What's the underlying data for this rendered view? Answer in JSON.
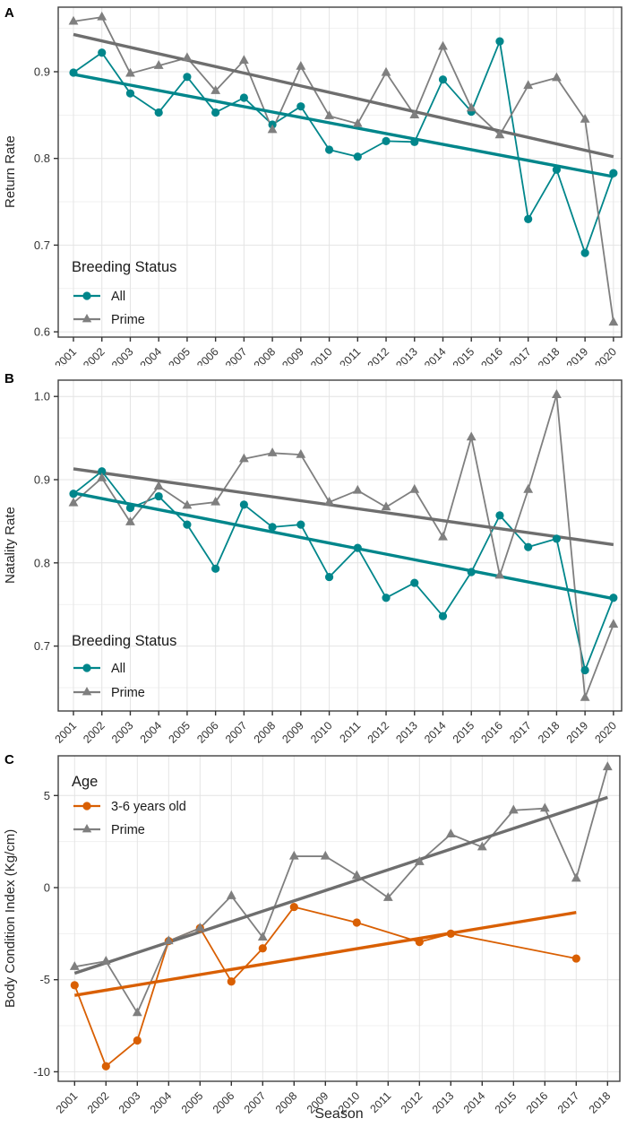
{
  "figure": {
    "x_axis_title": "Season",
    "background": "#ffffff"
  },
  "colors": {
    "teal": "#00868B",
    "gray": "#7F7F7F",
    "gray_trend": "#6E6E6E",
    "orange": "#D95F02",
    "text": "#262626"
  },
  "chart_data": [
    {
      "panel_label": "A",
      "type": "line",
      "title": "",
      "ylabel": "Return Rate",
      "xlabel": "Season",
      "legend_title": "Breeding Status",
      "legend_position": "inside bottom-left",
      "grid": true,
      "x": [
        2001,
        2002,
        2003,
        2004,
        2005,
        2006,
        2007,
        2008,
        2009,
        2010,
        2011,
        2012,
        2013,
        2014,
        2015,
        2016,
        2017,
        2018,
        2019,
        2020
      ],
      "x_tick_labels": [
        "2001",
        "2002",
        "2003",
        "2004",
        "2005",
        "2006",
        "2007",
        "2008",
        "2009",
        "2010",
        "2011",
        "2012",
        "2013",
        "2014",
        "2015",
        "2016",
        "2017",
        "2018",
        "2019",
        "2020"
      ],
      "yticks": [
        0.6,
        0.7,
        0.8,
        0.9
      ],
      "ytick_labels": [
        "0.6",
        "0.7",
        "0.8",
        "0.9"
      ],
      "ylim": [
        0.595,
        0.976
      ],
      "series": [
        {
          "name": "All",
          "marker": "circle",
          "color": "#00868B",
          "values": [
            0.899,
            0.922,
            0.875,
            0.853,
            0.894,
            0.853,
            0.87,
            0.839,
            0.86,
            0.81,
            0.802,
            0.82,
            0.819,
            0.891,
            0.854,
            0.935,
            0.73,
            0.787,
            0.691,
            0.783
          ]
        },
        {
          "name": "Prime",
          "marker": "triangle",
          "color": "#7F7F7F",
          "values": [
            0.958,
            0.963,
            0.898,
            0.907,
            0.916,
            0.878,
            0.913,
            0.833,
            0.906,
            0.849,
            0.84,
            0.899,
            0.85,
            0.929,
            0.858,
            0.827,
            0.884,
            0.893,
            0.845,
            0.611
          ]
        }
      ],
      "trends": [
        {
          "series": "All",
          "color": "#00868B",
          "x1": 2001,
          "y1": 0.897,
          "x2": 2020,
          "y2": 0.779
        },
        {
          "series": "Prime",
          "color": "#6E6E6E",
          "x1": 2001,
          "y1": 0.943,
          "x2": 2020,
          "y2": 0.802
        }
      ]
    },
    {
      "panel_label": "B",
      "type": "line",
      "title": "",
      "ylabel": "Natality Rate",
      "xlabel": "Season",
      "legend_title": "Breeding Status",
      "legend_position": "inside bottom-left",
      "grid": true,
      "x": [
        2001,
        2002,
        2003,
        2004,
        2005,
        2006,
        2007,
        2008,
        2009,
        2010,
        2011,
        2012,
        2013,
        2014,
        2015,
        2016,
        2017,
        2018,
        2019,
        2020
      ],
      "x_tick_labels": [
        "2001",
        "2002",
        "2003",
        "2004",
        "2005",
        "2006",
        "2007",
        "2008",
        "2009",
        "2010",
        "2011",
        "2012",
        "2013",
        "2014",
        "2015",
        "2016",
        "2017",
        "2018",
        "2019",
        "2020"
      ],
      "yticks": [
        0.7,
        0.8,
        0.9,
        1.0
      ],
      "ytick_labels": [
        "0.7",
        "0.8",
        "0.9",
        "1.0"
      ],
      "ylim": [
        0.618,
        1.02
      ],
      "series": [
        {
          "name": "All",
          "marker": "circle",
          "color": "#00868B",
          "values": [
            0.883,
            0.91,
            0.866,
            0.88,
            0.846,
            0.793,
            0.87,
            0.843,
            0.846,
            0.783,
            0.818,
            0.758,
            0.776,
            0.736,
            0.789,
            0.857,
            0.819,
            0.829,
            0.671,
            0.758
          ]
        },
        {
          "name": "Prime",
          "marker": "triangle",
          "color": "#7F7F7F",
          "values": [
            0.872,
            0.902,
            0.849,
            0.892,
            0.869,
            0.873,
            0.925,
            0.932,
            0.93,
            0.873,
            0.887,
            0.867,
            0.888,
            0.831,
            0.951,
            0.785,
            0.888,
            1.002,
            0.638,
            0.726
          ]
        }
      ],
      "trends": [
        {
          "series": "All",
          "color": "#00868B",
          "x1": 2001,
          "y1": 0.884,
          "x2": 2020,
          "y2": 0.757
        },
        {
          "series": "Prime",
          "color": "#6E6E6E",
          "x1": 2001,
          "y1": 0.913,
          "x2": 2020,
          "y2": 0.822
        }
      ]
    },
    {
      "panel_label": "C",
      "type": "line",
      "title": "",
      "ylabel": "Body Condition Index (Kg/cm)",
      "xlabel": "Season",
      "legend_title": "Age",
      "legend_position": "inside top-left",
      "grid": true,
      "x": [
        2001,
        2002,
        2003,
        2004,
        2005,
        2006,
        2007,
        2008,
        2009,
        2010,
        2011,
        2012,
        2013,
        2014,
        2015,
        2016,
        2017,
        2018
      ],
      "x_tick_labels": [
        "2001",
        "2002",
        "2003",
        "2004",
        "2005",
        "2006",
        "2007",
        "2008",
        "2009",
        "2010",
        "2011",
        "2012",
        "2013",
        "2014",
        "2015",
        "2016",
        "2017",
        "2018"
      ],
      "yticks": [
        -10,
        -5,
        0,
        5
      ],
      "ytick_labels": [
        "-10",
        "-5",
        "0",
        "5"
      ],
      "ylim": [
        -10.5,
        7.2
      ],
      "series": [
        {
          "name": "3-6 years old",
          "marker": "circle",
          "color": "#D95F02",
          "values": [
            -5.3,
            -9.7,
            -8.3,
            -2.9,
            -2.2,
            -5.1,
            -3.3,
            -1.05,
            null,
            -1.9,
            null,
            -2.95,
            -2.5,
            null,
            null,
            null,
            -3.85,
            null
          ]
        },
        {
          "name": "Prime",
          "marker": "triangle",
          "color": "#7F7F7F",
          "values": [
            -4.3,
            -4.0,
            -6.8,
            -2.9,
            -2.2,
            -0.45,
            -2.7,
            1.7,
            1.7,
            0.65,
            -0.55,
            1.4,
            2.9,
            2.2,
            4.2,
            4.3,
            0.5,
            6.55
          ]
        }
      ],
      "trends": [
        {
          "series": "3-6 years old",
          "color": "#D95F02",
          "x1": 2001,
          "y1": -5.85,
          "x2": 2017,
          "y2": -1.35
        },
        {
          "series": "Prime",
          "color": "#6E6E6E",
          "x1": 2001,
          "y1": -4.65,
          "x2": 2018,
          "y2": 4.9
        }
      ]
    }
  ]
}
